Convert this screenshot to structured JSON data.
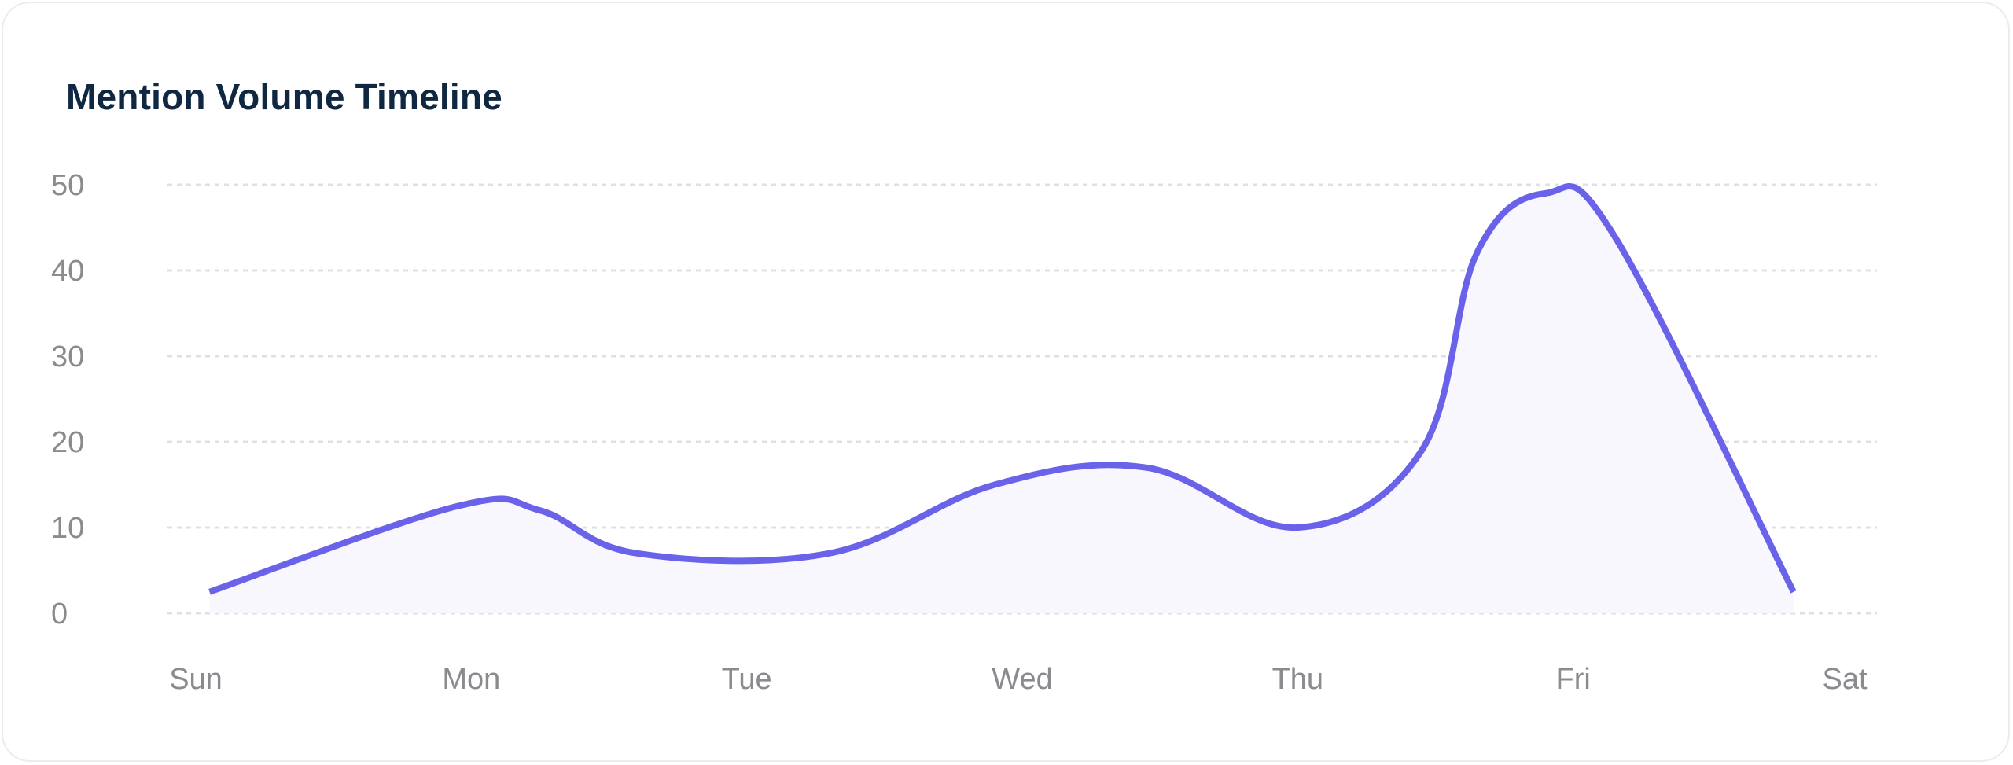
{
  "card": {
    "title": "Mention Volume Timeline"
  },
  "chart_data": {
    "type": "area",
    "title": "Mention Volume Timeline",
    "xlabel": "",
    "ylabel": "",
    "categories": [
      "Sun",
      "Mon",
      "Tue",
      "Wed",
      "Thu",
      "Fri",
      "Sat"
    ],
    "x_ticks": [
      "Sun",
      "Mon",
      "Tue",
      "Wed",
      "Thu",
      "Fri",
      "Sat"
    ],
    "y_ticks": [
      0,
      10,
      20,
      30,
      40,
      50
    ],
    "ylim": [
      0,
      50
    ],
    "grid": true,
    "legend": "none",
    "series": [
      {
        "color": "#6a63ea",
        "fill": "#f8f7fe",
        "points": [
          {
            "x": 0.05,
            "y": 2.5
          },
          {
            "x": 0.95,
            "y": 12.5
          },
          {
            "x": 1.25,
            "y": 12
          },
          {
            "x": 1.6,
            "y": 7
          },
          {
            "x": 2.3,
            "y": 7
          },
          {
            "x": 2.9,
            "y": 15
          },
          {
            "x": 3.45,
            "y": 17
          },
          {
            "x": 4.0,
            "y": 10
          },
          {
            "x": 4.45,
            "y": 19
          },
          {
            "x": 4.65,
            "y": 42
          },
          {
            "x": 4.9,
            "y": 49
          },
          {
            "x": 5.15,
            "y": 44
          },
          {
            "x": 5.8,
            "y": 2.5
          }
        ]
      }
    ]
  }
}
